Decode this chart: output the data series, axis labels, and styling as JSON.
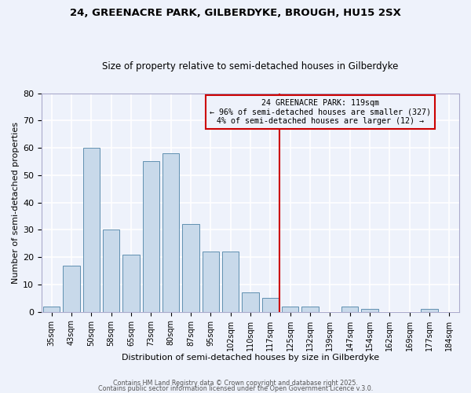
{
  "title": "24, GREENACRE PARK, GILBERDYKE, BROUGH, HU15 2SX",
  "subtitle": "Size of property relative to semi-detached houses in Gilberdyke",
  "xlabel": "Distribution of semi-detached houses by size in Gilberdyke",
  "ylabel": "Number of semi-detached properties",
  "categories": [
    "35sqm",
    "43sqm",
    "50sqm",
    "58sqm",
    "65sqm",
    "73sqm",
    "80sqm",
    "87sqm",
    "95sqm",
    "102sqm",
    "110sqm",
    "117sqm",
    "125sqm",
    "132sqm",
    "139sqm",
    "147sqm",
    "154sqm",
    "162sqm",
    "169sqm",
    "177sqm",
    "184sqm"
  ],
  "values": [
    2,
    17,
    60,
    30,
    21,
    55,
    58,
    32,
    22,
    22,
    7,
    5,
    2,
    2,
    0,
    2,
    1,
    0,
    0,
    1,
    0
  ],
  "bar_color": "#c8d9ea",
  "bar_edge_color": "#6090b0",
  "annotation_box_color": "#cc0000",
  "property_line_index": 11.45,
  "ann_line1": "24 GREENACRE PARK: 119sqm",
  "ann_line2": "← 96% of semi-detached houses are smaller (327)",
  "ann_line3": "4% of semi-detached houses are larger (12) →",
  "ylim": [
    0,
    80
  ],
  "yticks": [
    0,
    10,
    20,
    30,
    40,
    50,
    60,
    70,
    80
  ],
  "background_color": "#eef2fb",
  "grid_color": "#ffffff",
  "footer1": "Contains HM Land Registry data © Crown copyright and database right 2025.",
  "footer2": "Contains public sector information licensed under the Open Government Licence v.3.0."
}
